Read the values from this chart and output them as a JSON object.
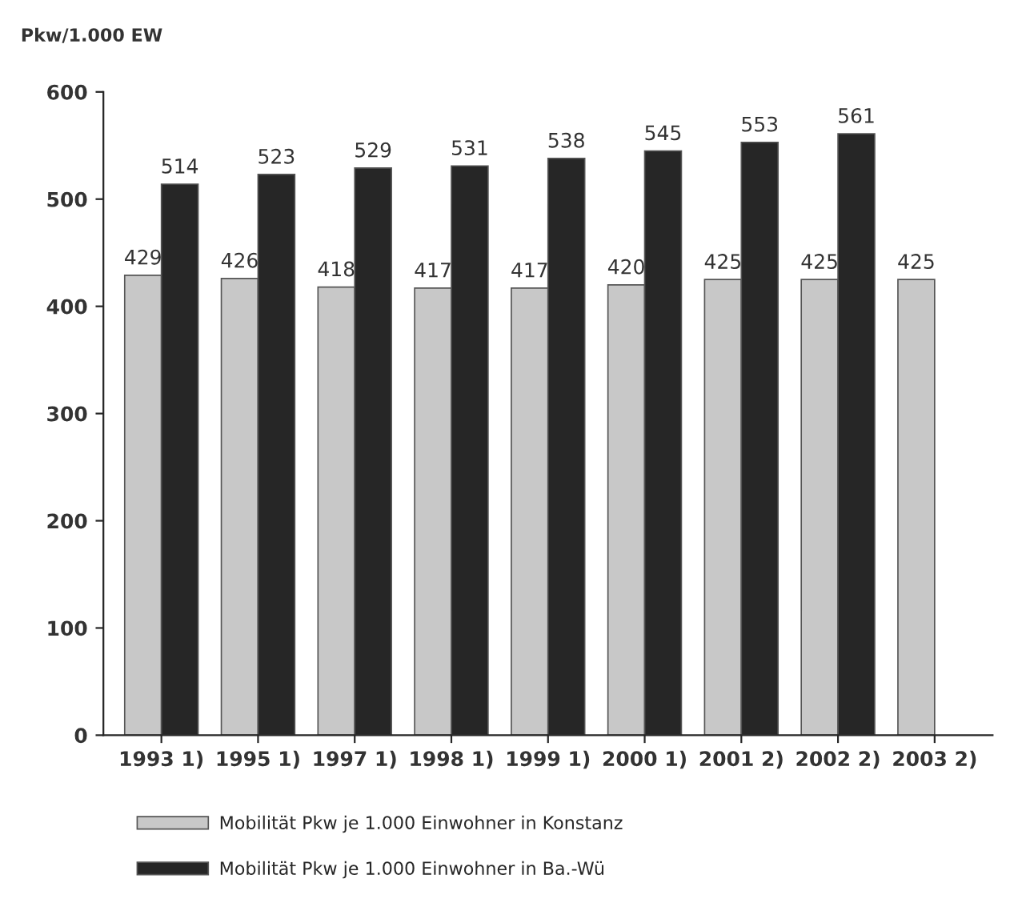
{
  "chart_data": {
    "type": "bar",
    "ylabel": "Pkw/1.000 EW",
    "categories": [
      "1993 1)",
      "1995 1)",
      "1997 1)",
      "1998 1)",
      "1999 1)",
      "2000 1)",
      "2001 2)",
      "2002 2)",
      "2003 2)"
    ],
    "series": [
      {
        "name": "Mobilität Pkw je 1.000 Einwohner in Konstanz",
        "color": "#c8c8c8",
        "values": [
          429,
          426,
          418,
          417,
          417,
          420,
          425,
          425,
          425
        ]
      },
      {
        "name": "Mobilität Pkw je 1.000 Einwohner in Ba.-Wü",
        "color": "#262626",
        "values": [
          514,
          523,
          529,
          531,
          538,
          545,
          553,
          561,
          null
        ]
      }
    ],
    "ylim": [
      0,
      600
    ],
    "yticks": [
      0,
      100,
      200,
      300,
      400,
      500,
      600
    ],
    "data_labels": true,
    "grid": false,
    "legend": "bottom"
  }
}
